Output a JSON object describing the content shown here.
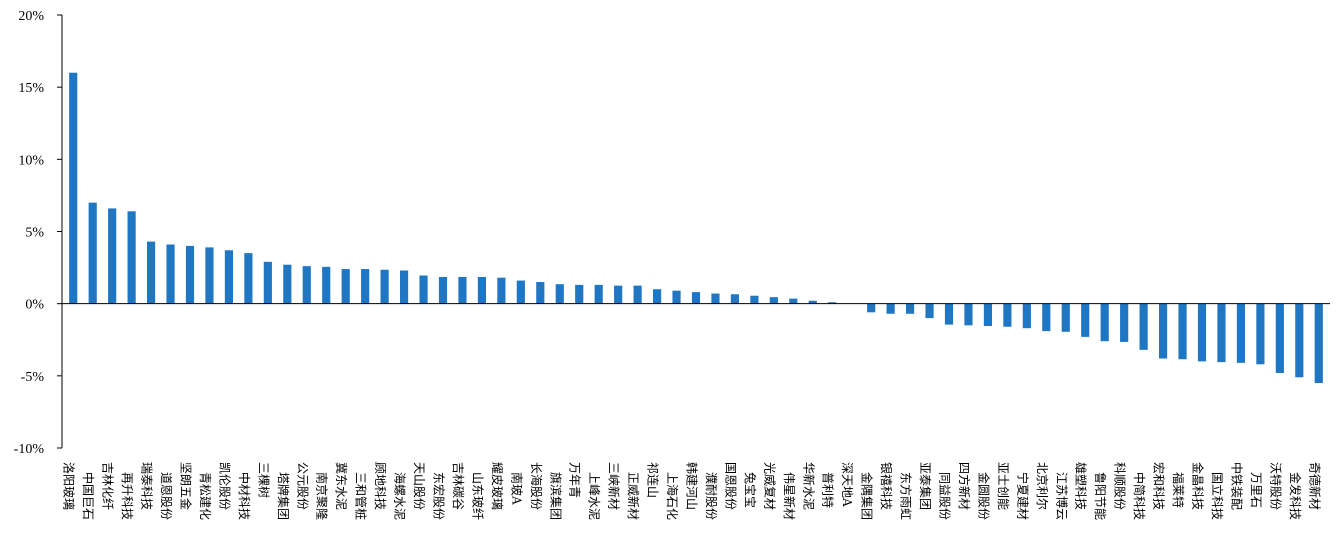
{
  "chart_data": {
    "type": "bar",
    "title": "",
    "xlabel": "",
    "ylabel": "",
    "ylim": [
      -10,
      20
    ],
    "yticks": [
      -10,
      -5,
      0,
      5,
      10,
      15,
      20
    ],
    "ytick_suffix": "%",
    "grid": false,
    "legend": "none",
    "bar_color": "#1f77c4",
    "categories": [
      "洛阳玻璃",
      "中国巨石",
      "吉林化纤",
      "再升科技",
      "瑞泰科技",
      "道恩股份",
      "坚朗五金",
      "青松建化",
      "凯伦股份",
      "中材科技",
      "三棵树",
      "塔牌集团",
      "公元股份",
      "南京聚隆",
      "冀东水泥",
      "三和管桩",
      "顾地科技",
      "海螺水泥",
      "天山股份",
      "东宏股份",
      "吉林碳谷",
      "山东玻纤",
      "耀皮玻璃",
      "南玻A",
      "长海股份",
      "旗滨集团",
      "万年青",
      "上峰水泥",
      "三峡新材",
      "正威新材",
      "祁连山",
      "上海石化",
      "韩建河山",
      "濮耐股份",
      "国恩股份",
      "兔宝宝",
      "光威复材",
      "伟星新材",
      "华新水泥",
      "普利特",
      "深天地A",
      "金隅集团",
      "银禧科技",
      "东方雨虹",
      "亚泰集团",
      "同益股份",
      "四方新材",
      "金圆股份",
      "亚士创能",
      "宁夏建材",
      "北京利尔",
      "江苏博云",
      "雄塑科技",
      "鲁阳节能",
      "科顺股份",
      "中简科技",
      "宏和科技",
      "福莱特",
      "金晶科技",
      "国立科技",
      "中铁装配",
      "万里石",
      "沃特股份",
      "金发科技",
      "奇德新材"
    ],
    "values": [
      16.0,
      7.0,
      6.6,
      6.4,
      4.3,
      4.1,
      4.0,
      3.9,
      3.7,
      3.5,
      2.9,
      2.7,
      2.6,
      2.55,
      2.4,
      2.4,
      2.35,
      2.3,
      1.95,
      1.85,
      1.85,
      1.85,
      1.8,
      1.6,
      1.5,
      1.35,
      1.3,
      1.3,
      1.25,
      1.25,
      1.0,
      0.9,
      0.8,
      0.7,
      0.65,
      0.55,
      0.45,
      0.35,
      0.2,
      0.1,
      0.0,
      -0.6,
      -0.7,
      -0.7,
      -1.0,
      -1.45,
      -1.5,
      -1.55,
      -1.6,
      -1.7,
      -1.9,
      -1.95,
      -2.3,
      -2.6,
      -2.65,
      -3.2,
      -3.8,
      -3.85,
      -4.0,
      -4.05,
      -4.1,
      -4.2,
      -4.8,
      -5.1,
      -5.5
    ]
  }
}
